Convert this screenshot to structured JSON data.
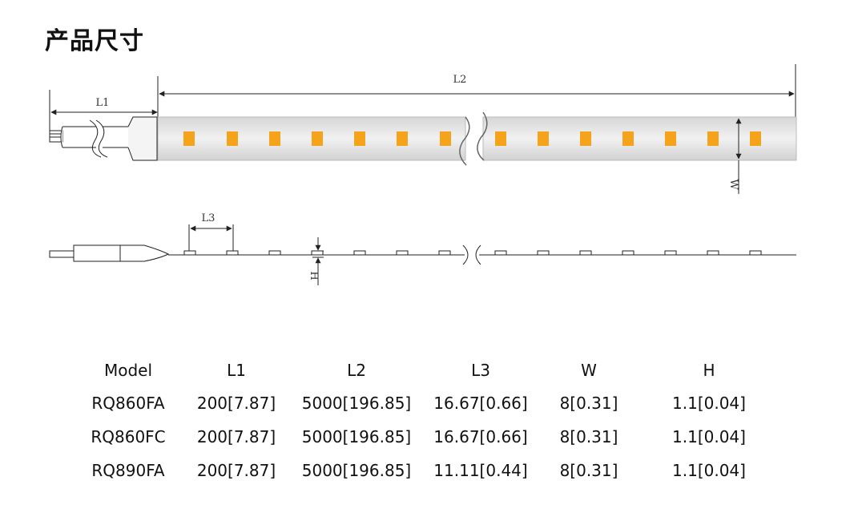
{
  "title": "产品尺寸",
  "diagram": {
    "labels": {
      "l1": "L1",
      "l2": "L2",
      "l3": "L3",
      "w": "W",
      "h": "H"
    },
    "led_color": "#f5a31a",
    "strip_color": "#e4e4e4"
  },
  "table": {
    "headers": [
      "Model",
      "L1",
      "L2",
      "L3",
      "W",
      "H"
    ],
    "rows": [
      [
        "RQ860FA",
        "200[7.87]",
        "5000[196.85]",
        "16.67[0.66]",
        "8[0.31]",
        "1.1[0.04]"
      ],
      [
        "RQ860FC",
        "200[7.87]",
        "5000[196.85]",
        "16.67[0.66]",
        "8[0.31]",
        "1.1[0.04]"
      ],
      [
        "RQ890FA",
        "200[7.87]",
        "5000[196.85]",
        "11.11[0.44]",
        "8[0.31]",
        "1.1[0.04]"
      ]
    ]
  }
}
